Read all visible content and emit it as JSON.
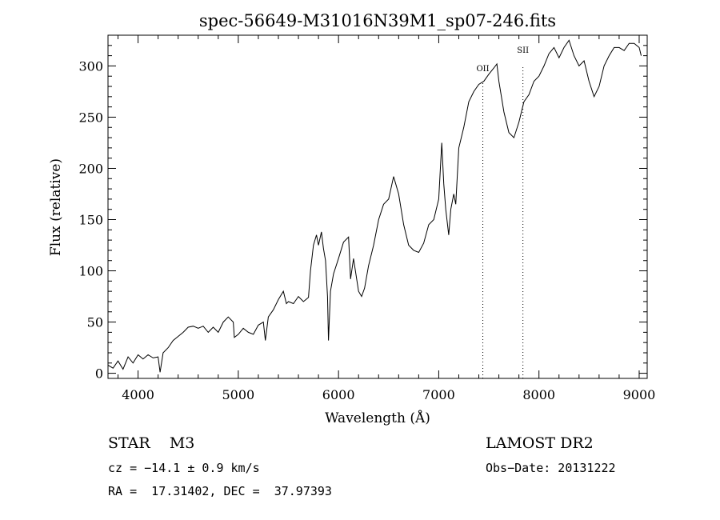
{
  "chart_data": {
    "type": "line",
    "title": "spec-56649-M31016N39M1_sp07-246.fits",
    "xlabel": "Wavelength (Å)",
    "ylabel": "Flux (relative)",
    "xlim": [
      3700,
      9080
    ],
    "ylim": [
      -5,
      330
    ],
    "xticks": [
      4000,
      5000,
      6000,
      7000,
      8000,
      9000
    ],
    "yticks": [
      0,
      50,
      100,
      150,
      200,
      250,
      300
    ],
    "grid": false,
    "series": [
      {
        "x": [
          3700,
          3750,
          3800,
          3850,
          3900,
          3950,
          4000,
          4050,
          4100,
          4150,
          4200,
          4220,
          4250,
          4300,
          4350,
          4400,
          4450,
          4500,
          4550,
          4600,
          4650,
          4700,
          4750,
          4800,
          4850,
          4900,
          4950,
          4960,
          5000,
          5050,
          5100,
          5150,
          5200,
          5250,
          5270,
          5300,
          5350,
          5400,
          5450,
          5480,
          5500,
          5550,
          5600,
          5650,
          5700,
          5720,
          5750,
          5780,
          5800,
          5830,
          5850,
          5870,
          5890,
          5900,
          5920,
          5950,
          6000,
          6050,
          6100,
          6120,
          6150,
          6200,
          6230,
          6260,
          6300,
          6350,
          6400,
          6450,
          6500,
          6550,
          6600,
          6650,
          6700,
          6750,
          6800,
          6850,
          6900,
          6950,
          7000,
          7030,
          7050,
          7070,
          7100,
          7120,
          7150,
          7170,
          7200,
          7250,
          7300,
          7350,
          7400,
          7450,
          7500,
          7550,
          7580,
          7600,
          7650,
          7700,
          7750,
          7800,
          7850,
          7900,
          7950,
          8000,
          8050,
          8100,
          8150,
          8200,
          8250,
          8300,
          8350,
          8400,
          8450,
          8500,
          8550,
          8600,
          8650,
          8700,
          8750,
          8800,
          8850,
          8900,
          8950,
          9000,
          9020
        ],
        "y": [
          8,
          5,
          12,
          4,
          16,
          10,
          18,
          14,
          18,
          15,
          16,
          1,
          20,
          25,
          32,
          36,
          40,
          45,
          46,
          44,
          46,
          40,
          45,
          40,
          50,
          55,
          50,
          35,
          38,
          44,
          40,
          38,
          47,
          50,
          32,
          55,
          62,
          72,
          80,
          68,
          70,
          68,
          75,
          70,
          74,
          100,
          125,
          135,
          125,
          138,
          122,
          110,
          75,
          32,
          80,
          97,
          112,
          128,
          133,
          92,
          112,
          80,
          75,
          83,
          105,
          125,
          150,
          165,
          170,
          192,
          175,
          145,
          125,
          120,
          118,
          127,
          145,
          150,
          170,
          225,
          185,
          160,
          135,
          160,
          175,
          165,
          220,
          240,
          265,
          275,
          282,
          285,
          292,
          298,
          302,
          285,
          255,
          235,
          230,
          245,
          265,
          272,
          285,
          290,
          300,
          312,
          318,
          308,
          318,
          325,
          310,
          300,
          305,
          285,
          270,
          280,
          300,
          310,
          318,
          318,
          315,
          322,
          322,
          318,
          310
        ]
      }
    ],
    "annotations": [
      {
        "label": "OII",
        "x": 7440
      },
      {
        "label": "SII",
        "x": 7840
      }
    ]
  },
  "footer": {
    "object": "STAR    M3",
    "survey": "LAMOST DR2",
    "cz": "cz = −14.1 ± 0.9 km/s",
    "obsdate": "Obs−Date: 20131222",
    "coords": "RA =  17.31402, DEC =  37.97393"
  }
}
